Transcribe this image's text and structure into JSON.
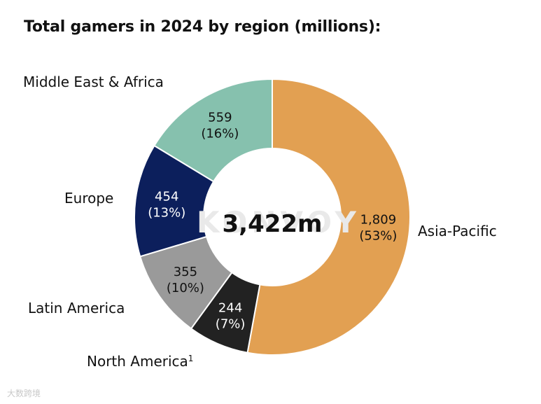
{
  "chart_data": {
    "type": "pie",
    "title": "Total gamers in 2024 by region (millions):",
    "center_label": "3,422m",
    "watermark": "KONVOY",
    "slices": [
      {
        "name": "Asia-Pacific",
        "value": 1809,
        "value_label": "1,809",
        "percent_label": "(53%)",
        "color": "#e2a052",
        "text_color": "#111111"
      },
      {
        "name": "North America",
        "footnote": "1",
        "value": 244,
        "value_label": "244",
        "percent_label": "(7%)",
        "color": "#222222",
        "text_color": "#ffffff"
      },
      {
        "name": "Latin America",
        "value": 355,
        "value_label": "355",
        "percent_label": "(10%)",
        "color": "#9a9a9a",
        "text_color": "#111111"
      },
      {
        "name": "Europe",
        "value": 454,
        "value_label": "454",
        "percent_label": "(13%)",
        "color": "#0c1f5c",
        "text_color": "#ffffff"
      },
      {
        "name": "Middle East & Africa",
        "value": 559,
        "value_label": "559",
        "percent_label": "(16%)",
        "color": "#86c1ae",
        "text_color": "#111111"
      }
    ]
  },
  "footer": {
    "source_mark": "大数跨境"
  }
}
